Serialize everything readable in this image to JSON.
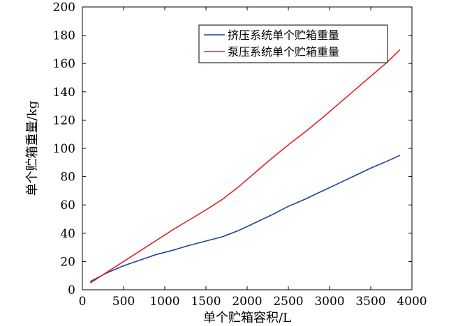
{
  "chart_data": {
    "type": "line",
    "title": "",
    "xlabel": "单个贮箱容积/L",
    "ylabel": "单个贮箱重量/kg",
    "xlim": [
      0,
      4000
    ],
    "ylim": [
      0,
      200
    ],
    "x_ticks": [
      0,
      500,
      1000,
      1500,
      2000,
      2500,
      3000,
      3500,
      4000
    ],
    "y_ticks": [
      0,
      20,
      40,
      60,
      80,
      100,
      120,
      140,
      160,
      180,
      200
    ],
    "grid": false,
    "legend_position": "top-right",
    "series": [
      {
        "name": "挤压系统单个贮箱重量",
        "color": "#1f3f9f",
        "points": [
          [
            100,
            6
          ],
          [
            300,
            12
          ],
          [
            500,
            17
          ],
          [
            700,
            21
          ],
          [
            900,
            25
          ],
          [
            1100,
            28
          ],
          [
            1300,
            31.5
          ],
          [
            1500,
            34.5
          ],
          [
            1700,
            37.5
          ],
          [
            1900,
            42
          ],
          [
            2100,
            47.5
          ],
          [
            2300,
            53
          ],
          [
            2500,
            59
          ],
          [
            2700,
            64
          ],
          [
            2900,
            69.5
          ],
          [
            3100,
            75
          ],
          [
            3300,
            80.5
          ],
          [
            3500,
            86
          ],
          [
            3700,
            91
          ],
          [
            3850,
            95
          ]
        ]
      },
      {
        "name": "泵压系统单个贮箱重量",
        "color": "#e02424",
        "points": [
          [
            100,
            5
          ],
          [
            300,
            12.5
          ],
          [
            500,
            20
          ],
          [
            700,
            27.5
          ],
          [
            900,
            35
          ],
          [
            1100,
            42.5
          ],
          [
            1300,
            49.5
          ],
          [
            1500,
            56.5
          ],
          [
            1700,
            64
          ],
          [
            1900,
            73
          ],
          [
            2100,
            83
          ],
          [
            2300,
            93
          ],
          [
            2500,
            102.5
          ],
          [
            2700,
            111.5
          ],
          [
            2900,
            121
          ],
          [
            3100,
            131
          ],
          [
            3300,
            141
          ],
          [
            3500,
            151
          ],
          [
            3700,
            161
          ],
          [
            3850,
            169.5
          ]
        ]
      }
    ]
  }
}
